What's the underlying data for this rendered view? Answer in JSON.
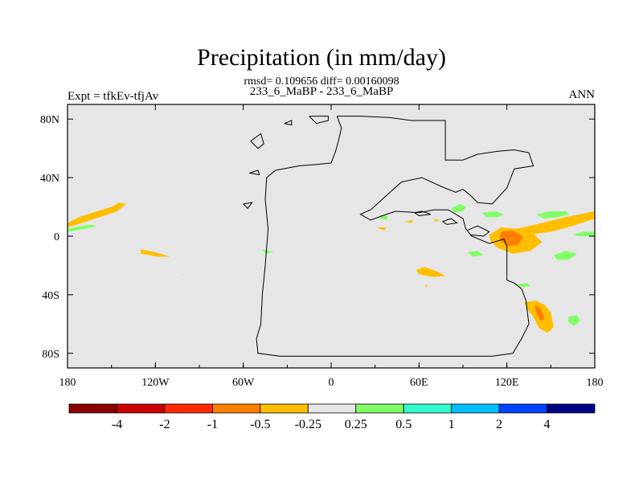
{
  "chart_data": {
    "type": "heatmap",
    "title": "Precipitation (in mm/day)",
    "stats_text": "rmsd= 0.109656 diff= 0.00160098",
    "case_text": "233_6_MaBP - 233_6_MaBP",
    "left_label": "Expt = tfkEv-tfjAv",
    "right_label": "ANN",
    "xlim": [
      -180,
      180
    ],
    "ylim": [
      -90,
      90
    ],
    "x_ticks": [
      {
        "value": -180,
        "label": "180"
      },
      {
        "value": -120,
        "label": "120W"
      },
      {
        "value": -60,
        "label": "60W"
      },
      {
        "value": 0,
        "label": "0"
      },
      {
        "value": 60,
        "label": "60E"
      },
      {
        "value": 120,
        "label": "120E"
      },
      {
        "value": 180,
        "label": "180"
      }
    ],
    "y_ticks": [
      {
        "value": 80,
        "label": "80N"
      },
      {
        "value": 40,
        "label": "40N"
      },
      {
        "value": 0,
        "label": "0"
      },
      {
        "value": -40,
        "label": "40S"
      },
      {
        "value": -80,
        "label": "80S"
      }
    ],
    "background_color": "#e6e6e6",
    "colorbar": {
      "colors": [
        "#8b0000",
        "#cd0000",
        "#ff2a00",
        "#ff7f00",
        "#ffbf00",
        "#e6e6e6",
        "#80ff66",
        "#33ffcc",
        "#00bfff",
        "#0044ff",
        "#000088"
      ],
      "labels": [
        "-4",
        "-2",
        "-1",
        "-0.5",
        "-0.25",
        "0.25",
        "0.5",
        "1",
        "2",
        "4"
      ]
    },
    "regions": [
      {
        "color": "#ffbf00",
        "points": [
          [
            -180,
            9
          ],
          [
            -172,
            13
          ],
          [
            -160,
            17
          ],
          [
            -150,
            20
          ],
          [
            -145,
            23
          ],
          [
            -140,
            22
          ],
          [
            -146,
            17
          ],
          [
            -158,
            13
          ],
          [
            -170,
            9
          ],
          [
            -180,
            6
          ]
        ]
      },
      {
        "color": "#80ff66",
        "points": [
          [
            -180,
            3
          ],
          [
            -168,
            5
          ],
          [
            -160,
            7
          ],
          [
            -165,
            8
          ],
          [
            -175,
            6
          ],
          [
            -180,
            5
          ]
        ]
      },
      {
        "color": "#ffbf00",
        "points": [
          [
            -130,
            -9
          ],
          [
            -120,
            -11
          ],
          [
            -110,
            -14
          ],
          [
            -118,
            -14
          ],
          [
            -130,
            -12
          ]
        ]
      },
      {
        "color": "#80ff66",
        "points": [
          [
            -103,
            -25
          ],
          [
            -100,
            -27
          ],
          [
            -102,
            -26
          ]
        ]
      },
      {
        "color": "#80ff66",
        "points": [
          [
            -47,
            -9
          ],
          [
            -39,
            -11
          ],
          [
            -45,
            -12
          ]
        ]
      },
      {
        "color": "#ffbf00",
        "points": [
          [
            58,
            -23
          ],
          [
            64,
            -21
          ],
          [
            72,
            -24
          ],
          [
            78,
            -27
          ],
          [
            70,
            -28
          ],
          [
            60,
            -26
          ]
        ]
      },
      {
        "color": "#ffbf00",
        "points": [
          [
            64,
            -34
          ],
          [
            66,
            -33
          ],
          [
            65,
            -35
          ]
        ]
      },
      {
        "color": "#80ff66",
        "points": [
          [
            33,
            14
          ],
          [
            39,
            14
          ],
          [
            38,
            11
          ],
          [
            34,
            12
          ]
        ]
      },
      {
        "color": "#80ff66",
        "points": [
          [
            82,
            19
          ],
          [
            88,
            22
          ],
          [
            92,
            20
          ],
          [
            90,
            17
          ],
          [
            84,
            16
          ]
        ]
      },
      {
        "color": "#ffbf00",
        "points": [
          [
            50,
            10
          ],
          [
            56,
            11
          ],
          [
            55,
            9
          ]
        ]
      },
      {
        "color": "#ffbf00",
        "points": [
          [
            31,
            6
          ],
          [
            38,
            6
          ],
          [
            36,
            4
          ]
        ]
      },
      {
        "color": "#ffbf00",
        "points": [
          [
            70,
            12
          ],
          [
            74,
            11
          ],
          [
            71,
            10
          ]
        ]
      },
      {
        "color": "#80ff66",
        "points": [
          [
            103,
            16
          ],
          [
            112,
            17
          ],
          [
            118,
            15
          ],
          [
            114,
            13
          ],
          [
            106,
            13
          ]
        ]
      },
      {
        "color": "#80ff66",
        "points": [
          [
            140,
            15
          ],
          [
            150,
            17
          ],
          [
            160,
            17
          ],
          [
            163,
            15
          ],
          [
            155,
            13
          ],
          [
            145,
            12
          ]
        ]
      },
      {
        "color": "#ffbf00",
        "points": [
          [
            126,
            5
          ],
          [
            140,
            8
          ],
          [
            160,
            13
          ],
          [
            180,
            17
          ],
          [
            180,
            12
          ],
          [
            165,
            7
          ],
          [
            150,
            3
          ],
          [
            135,
            1
          ]
        ]
      },
      {
        "color": "#80ff66",
        "points": [
          [
            165,
            1
          ],
          [
            172,
            3
          ],
          [
            180,
            3
          ],
          [
            180,
            0
          ],
          [
            170,
            0
          ]
        ]
      },
      {
        "color": "#ffbf00",
        "points": [
          [
            108,
            1
          ],
          [
            116,
            6
          ],
          [
            128,
            5
          ],
          [
            138,
            2
          ],
          [
            144,
            -4
          ],
          [
            136,
            -10
          ],
          [
            124,
            -12
          ],
          [
            114,
            -8
          ],
          [
            109,
            -4
          ]
        ]
      },
      {
        "color": "#ff7f00",
        "points": [
          [
            116,
            3
          ],
          [
            124,
            4
          ],
          [
            131,
            0
          ],
          [
            128,
            -6
          ],
          [
            120,
            -7
          ],
          [
            115,
            -2
          ]
        ]
      },
      {
        "color": "#80ff66",
        "points": [
          [
            93,
            -11
          ],
          [
            100,
            -10
          ],
          [
            104,
            -13
          ],
          [
            97,
            -14
          ]
        ]
      },
      {
        "color": "#80ff66",
        "points": [
          [
            152,
            -13
          ],
          [
            160,
            -10
          ],
          [
            168,
            -12
          ],
          [
            162,
            -16
          ],
          [
            154,
            -16
          ]
        ]
      },
      {
        "color": "#80ff66",
        "points": [
          [
            127,
            -33
          ],
          [
            134,
            -32
          ],
          [
            136,
            -34
          ],
          [
            130,
            -35
          ]
        ]
      },
      {
        "color": "#ffbf00",
        "points": [
          [
            132,
            -45
          ],
          [
            140,
            -44
          ],
          [
            146,
            -47
          ],
          [
            150,
            -52
          ],
          [
            152,
            -62
          ],
          [
            148,
            -66
          ],
          [
            142,
            -63
          ],
          [
            138,
            -55
          ],
          [
            134,
            -50
          ]
        ]
      },
      {
        "color": "#ff7f00",
        "points": [
          [
            139,
            -47
          ],
          [
            143,
            -49
          ],
          [
            146,
            -56
          ],
          [
            143,
            -58
          ],
          [
            140,
            -52
          ]
        ]
      },
      {
        "color": "#80ff66",
        "points": [
          [
            162,
            -55
          ],
          [
            168,
            -54
          ],
          [
            170,
            -58
          ],
          [
            166,
            -61
          ],
          [
            162,
            -59
          ]
        ]
      }
    ],
    "coastline": [
      [
        [
          4,
          82
        ],
        [
          20,
          82
        ],
        [
          40,
          81
        ],
        [
          55,
          79
        ],
        [
          78,
          79
        ],
        [
          78,
          52
        ],
        [
          90,
          52
        ],
        [
          100,
          56
        ],
        [
          114,
          58
        ],
        [
          125,
          59
        ],
        [
          135,
          57
        ],
        [
          138,
          48
        ],
        [
          125,
          46
        ],
        [
          120,
          33
        ],
        [
          110,
          22
        ],
        [
          100,
          23
        ],
        [
          95,
          28
        ],
        [
          90,
          32
        ],
        [
          85,
          30
        ],
        [
          75,
          34
        ],
        [
          62,
          40
        ],
        [
          48,
          37
        ],
        [
          38,
          28
        ],
        [
          27,
          18
        ],
        [
          20,
          15
        ],
        [
          27,
          11
        ],
        [
          35,
          14
        ],
        [
          44,
          17
        ],
        [
          60,
          16
        ],
        [
          70,
          18
        ],
        [
          80,
          18
        ],
        [
          90,
          12
        ],
        [
          92,
          5
        ],
        [
          96,
          0
        ],
        [
          108,
          -5
        ],
        [
          118,
          -2
        ],
        [
          120,
          -7
        ],
        [
          120,
          -30
        ],
        [
          125,
          -32
        ],
        [
          130,
          -36
        ],
        [
          133,
          -44
        ],
        [
          135,
          -60
        ],
        [
          130,
          -70
        ],
        [
          124,
          -80
        ],
        [
          110,
          -82
        ],
        [
          70,
          -82
        ],
        [
          10,
          -82
        ],
        [
          -35,
          -82
        ],
        [
          -50,
          -80
        ],
        [
          -51,
          -70
        ],
        [
          -48,
          -60
        ],
        [
          -47,
          -40
        ],
        [
          -45,
          -20
        ],
        [
          -43,
          5
        ],
        [
          -45,
          25
        ],
        [
          -44,
          40
        ],
        [
          -38,
          45
        ],
        [
          -22,
          48
        ],
        [
          -10,
          49
        ],
        [
          0,
          50
        ],
        [
          3,
          58
        ],
        [
          5,
          65
        ],
        [
          7,
          74
        ],
        [
          4,
          82
        ]
      ],
      [
        [
          -32,
          77
        ],
        [
          -27,
          79
        ],
        [
          -27,
          76
        ],
        [
          -32,
          77
        ]
      ],
      [
        [
          -15,
          82
        ],
        [
          -2,
          82
        ],
        [
          -2,
          79
        ],
        [
          -10,
          77
        ],
        [
          -15,
          82
        ]
      ],
      [
        [
          -55,
          65
        ],
        [
          -48,
          70
        ],
        [
          -46,
          63
        ],
        [
          -50,
          60
        ],
        [
          -55,
          65
        ]
      ],
      [
        [
          -56,
          43
        ],
        [
          -50,
          45
        ],
        [
          -49,
          42
        ],
        [
          -55,
          43
        ]
      ],
      [
        [
          -60,
          22
        ],
        [
          -54,
          23
        ],
        [
          -57,
          19
        ],
        [
          -60,
          22
        ]
      ],
      [
        [
          93,
          4
        ],
        [
          100,
          7
        ],
        [
          108,
          3
        ],
        [
          104,
          0
        ],
        [
          95,
          1
        ]
      ],
      [
        [
          57,
          16
        ],
        [
          62,
          17
        ],
        [
          68,
          15
        ],
        [
          60,
          14
        ],
        [
          57,
          16
        ]
      ],
      [
        [
          76,
          10
        ],
        [
          82,
          12
        ],
        [
          86,
          9
        ],
        [
          79,
          8
        ],
        [
          76,
          10
        ]
      ]
    ]
  }
}
